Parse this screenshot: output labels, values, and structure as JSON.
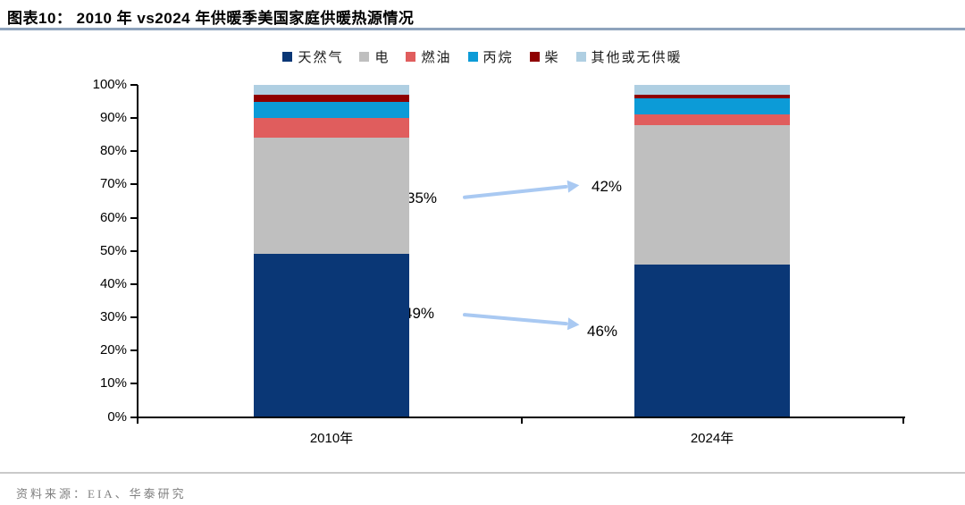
{
  "header": {
    "title": "图表10：  2010 年  vs2024 年供暖季美国家庭供暖热源情况"
  },
  "footer": {
    "source": "资料来源：EIA、华泰研究"
  },
  "chart_data": {
    "type": "bar",
    "stacked": true,
    "title": "图表10：  2010 年  vs2024 年供暖季美国家庭供暖热源情况",
    "categories": [
      "2010年",
      "2024年"
    ],
    "series": [
      {
        "name": "天然气",
        "color": "#0A3776",
        "values": [
          49,
          46
        ]
      },
      {
        "name": "电",
        "color": "#BFBFBF",
        "values": [
          35,
          42
        ]
      },
      {
        "name": "燃油",
        "color": "#E05D5D",
        "values": [
          6,
          3
        ]
      },
      {
        "name": "丙烷",
        "color": "#0C9BD7",
        "values": [
          5,
          5
        ]
      },
      {
        "name": "柴",
        "color": "#8F0000",
        "values": [
          2,
          1
        ]
      },
      {
        "name": "其他或无供暖",
        "color": "#AFCFE2",
        "values": [
          3,
          3
        ]
      }
    ],
    "xlabel": "",
    "ylabel": "",
    "ylim": [
      0,
      100
    ],
    "ytick_step": 10,
    "ytick_suffix": "%",
    "grid": false,
    "legend_position": "top",
    "annotations": [
      {
        "series": "电",
        "from_label": "35%",
        "to_label": "42%"
      },
      {
        "series": "天然气",
        "from_label": "49%",
        "to_label": "46%"
      }
    ]
  },
  "colors": {
    "arrow": "#A9C9F2",
    "title_underline": "#8EA3BC",
    "axis": "#000000",
    "footer_divider": "#C9C9C9",
    "footer_text": "#808080"
  }
}
